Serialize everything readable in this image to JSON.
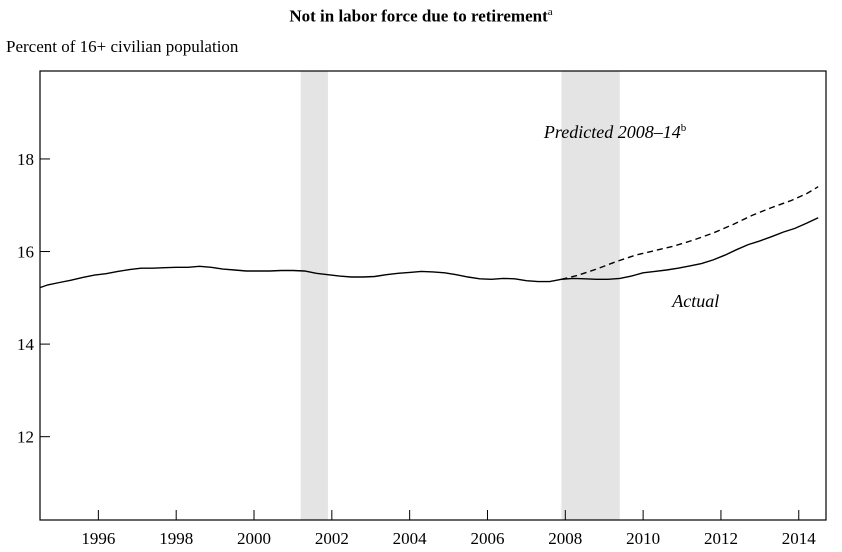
{
  "chart_data": {
    "type": "line",
    "title": "Not in labor force due to retirement",
    "title_sup": "a",
    "ylabel": "Percent of 16+ civilian population",
    "xlim": [
      1994.5,
      2014.7
    ],
    "ylim": [
      10.2,
      19.9
    ],
    "yticks": [
      12,
      14,
      16,
      18
    ],
    "xticks": [
      1996,
      1998,
      2000,
      2002,
      2004,
      2006,
      2008,
      2010,
      2012,
      2014
    ],
    "grid": false,
    "recessions": [
      [
        2001.2,
        2001.9
      ],
      [
        2007.9,
        2009.4
      ]
    ],
    "series": [
      {
        "name": "Actual",
        "style": "solid",
        "x": [
          1994.5,
          1994.7,
          1995.0,
          1995.3,
          1995.6,
          1995.9,
          1996.2,
          1996.5,
          1996.8,
          1997.1,
          1997.4,
          1997.7,
          1998.0,
          1998.3,
          1998.6,
          1998.9,
          1999.2,
          1999.5,
          1999.8,
          2000.1,
          2000.4,
          2000.7,
          2001.0,
          2001.3,
          2001.6,
          2001.9,
          2002.2,
          2002.5,
          2002.8,
          2003.1,
          2003.4,
          2003.7,
          2004.0,
          2004.3,
          2004.6,
          2004.9,
          2005.2,
          2005.5,
          2005.8,
          2006.1,
          2006.4,
          2006.7,
          2007.0,
          2007.3,
          2007.6,
          2007.9,
          2008.2,
          2008.5,
          2008.8,
          2009.1,
          2009.4,
          2009.7,
          2010.0,
          2010.3,
          2010.6,
          2010.9,
          2011.2,
          2011.5,
          2011.8,
          2012.1,
          2012.4,
          2012.7,
          2013.0,
          2013.3,
          2013.6,
          2013.9,
          2014.2,
          2014.5
        ],
        "y": [
          15.22,
          15.28,
          15.33,
          15.38,
          15.44,
          15.49,
          15.52,
          15.57,
          15.61,
          15.64,
          15.64,
          15.65,
          15.66,
          15.66,
          15.68,
          15.66,
          15.62,
          15.6,
          15.58,
          15.58,
          15.58,
          15.59,
          15.59,
          15.58,
          15.53,
          15.5,
          15.47,
          15.45,
          15.45,
          15.46,
          15.5,
          15.53,
          15.55,
          15.57,
          15.56,
          15.54,
          15.5,
          15.45,
          15.41,
          15.4,
          15.42,
          15.41,
          15.37,
          15.35,
          15.35,
          15.4,
          15.42,
          15.41,
          15.4,
          15.4,
          15.42,
          15.47,
          15.54,
          15.57,
          15.6,
          15.64,
          15.69,
          15.74,
          15.82,
          15.92,
          16.04,
          16.15,
          16.23,
          16.32,
          16.42,
          16.5,
          16.61,
          16.73
        ]
      },
      {
        "name": "Predicted 2008–14",
        "name_sup": "b",
        "style": "dashed",
        "x": [
          2007.9,
          2008.3,
          2008.8,
          2009.3,
          2009.8,
          2010.3,
          2010.8,
          2011.3,
          2011.8,
          2012.3,
          2012.8,
          2013.3,
          2013.8,
          2014.2,
          2014.5
        ],
        "y": [
          15.4,
          15.48,
          15.62,
          15.78,
          15.92,
          16.02,
          16.12,
          16.25,
          16.4,
          16.58,
          16.78,
          16.95,
          17.1,
          17.25,
          17.4
        ]
      }
    ],
    "annotations": [
      {
        "text": "Predicted 2008–14",
        "sup": "b",
        "x": 2007.45,
        "y": 18.45
      },
      {
        "text": "Actual",
        "sup": "",
        "x": 2010.75,
        "y": 14.8
      }
    ]
  }
}
